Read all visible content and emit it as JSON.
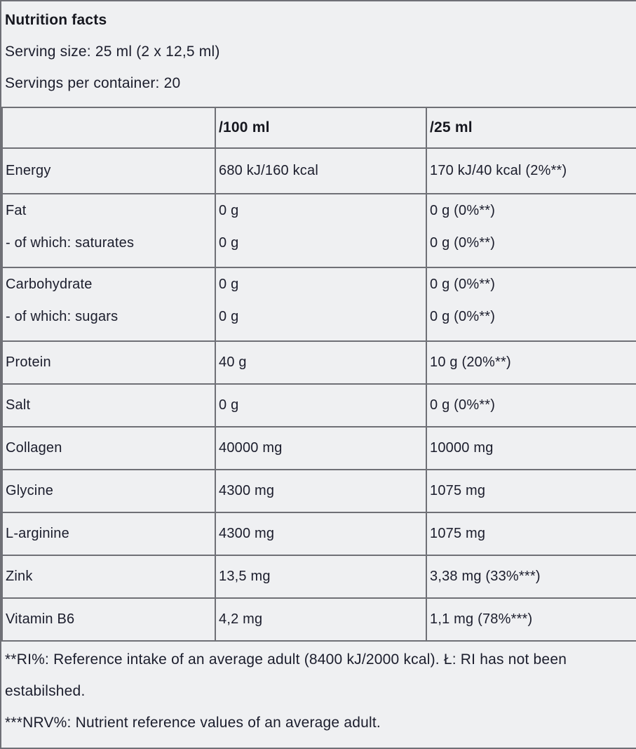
{
  "colors": {
    "background": "#eff0f2",
    "text": "#1b1d2c",
    "border": "#6f7076"
  },
  "header": {
    "title": "Nutrition facts",
    "serving_size": "Serving size: 25 ml (2 x 12,5 ml)",
    "servings_per_container": "Servings per container: 20"
  },
  "table": {
    "columns": [
      "",
      "/100 ml",
      "/25 ml"
    ],
    "rows": [
      {
        "nutrient": "Energy",
        "per_100ml": "680 kJ/160 kcal",
        "per_25ml": "170 kJ/40 kcal (2%**)"
      },
      {
        "nutrient": "Fat",
        "nutrient_sub": "- of which: saturates",
        "per_100ml": "0 g",
        "per_100ml_sub": "0 g",
        "per_25ml": "0 g (0%**)",
        "per_25ml_sub": "0 g (0%**)"
      },
      {
        "nutrient": "Carbohydrate",
        "nutrient_sub": "- of which: sugars",
        "per_100ml": "0 g",
        "per_100ml_sub": "0 g",
        "per_25ml": "0 g (0%**)",
        "per_25ml_sub": "0 g (0%**)"
      },
      {
        "nutrient": "Protein",
        "per_100ml": "40 g",
        "per_25ml": "10 g (20%**)"
      },
      {
        "nutrient": "Salt",
        "per_100ml": "0 g",
        "per_25ml": "0 g (0%**)"
      },
      {
        "nutrient": "Collagen",
        "per_100ml": "40000 mg",
        "per_25ml": "10000 mg"
      },
      {
        "nutrient": "Glycine",
        "per_100ml": "4300 mg",
        "per_25ml": "1075 mg"
      },
      {
        "nutrient": "L-arginine",
        "per_100ml": "4300 mg",
        "per_25ml": "1075 mg"
      },
      {
        "nutrient": "Zink",
        "per_100ml": "13,5 mg",
        "per_25ml": "3,38 mg (33%***)"
      },
      {
        "nutrient": "Vitamin B6",
        "per_100ml": "4,2 mg",
        "per_25ml": "1,1 mg (78%***)"
      }
    ]
  },
  "footnotes": [
    "**RI%: Reference intake of an average adult (8400 kJ/2000 kcal). Ł: RI has not been estabilshed.",
    "***NRV%: Nutrient reference values of an average adult."
  ]
}
